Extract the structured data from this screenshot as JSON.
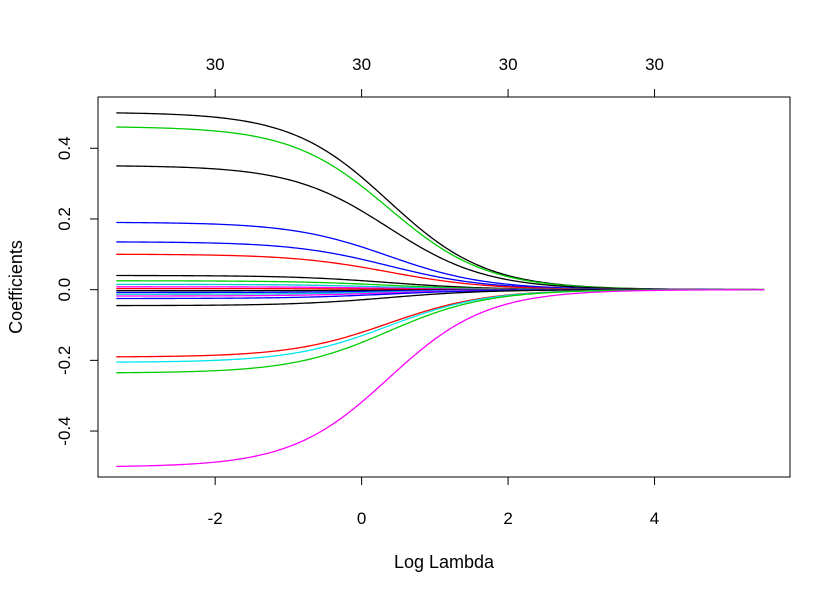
{
  "chart_data": {
    "type": "line",
    "title": "",
    "xlabel": "Log Lambda",
    "ylabel": "Coefficients",
    "xlim": [
      -3.6,
      5.85
    ],
    "ylim": [
      -0.53,
      0.545
    ],
    "x_ticks": [
      -2,
      0,
      2,
      4
    ],
    "x_tick_labels": [
      "-2",
      "0",
      "2",
      "4"
    ],
    "y_ticks": [
      -0.4,
      -0.2,
      0.0,
      0.2,
      0.4
    ],
    "y_tick_labels": [
      "-0.4",
      "-0.2",
      "0.0",
      "0.2",
      "0.4"
    ],
    "top_axis": {
      "ticks": [
        -2,
        0,
        2,
        4
      ],
      "labels": [
        "30",
        "30",
        "30",
        "30"
      ]
    },
    "grid": false,
    "legend": "none",
    "x_range": [
      -3.35,
      5.5
    ],
    "series": [
      {
        "start": 0.5,
        "color": "#000000"
      },
      {
        "start": 0.46,
        "color": "#00cd00"
      },
      {
        "start": 0.35,
        "color": "#000000"
      },
      {
        "start": 0.19,
        "color": "#0000ff"
      },
      {
        "start": 0.135,
        "color": "#0000ff"
      },
      {
        "start": 0.1,
        "color": "#ff0000"
      },
      {
        "start": 0.04,
        "color": "#000000"
      },
      {
        "start": 0.025,
        "color": "#00cd00"
      },
      {
        "start": 0.015,
        "color": "#00cdcd"
      },
      {
        "start": 0.008,
        "color": "#ff00ff"
      },
      {
        "start": 0.003,
        "color": "#ff0000"
      },
      {
        "start": -0.003,
        "color": "#000000"
      },
      {
        "start": -0.008,
        "color": "#0000ff"
      },
      {
        "start": -0.013,
        "color": "#00cdcd"
      },
      {
        "start": -0.018,
        "color": "#ff00ff"
      },
      {
        "start": -0.025,
        "color": "#0000ff"
      },
      {
        "start": -0.045,
        "color": "#000000"
      },
      {
        "start": -0.19,
        "color": "#ff0000"
      },
      {
        "start": -0.205,
        "color": "#00e5ee"
      },
      {
        "start": -0.235,
        "color": "#00cd00"
      },
      {
        "start": -0.5,
        "color": "#ff00ff"
      }
    ]
  }
}
